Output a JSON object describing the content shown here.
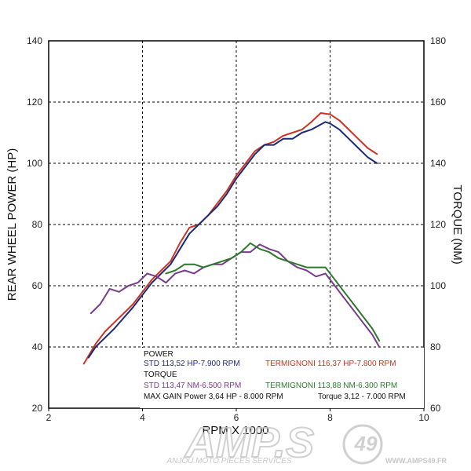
{
  "chart_data": {
    "type": "line",
    "xlabel": "RPM X 1000",
    "ylabel": "REAR WHEEL POWER (HP)",
    "y2label": "TORQUE (NM)",
    "xlim": [
      2,
      10
    ],
    "ylim": [
      20,
      140
    ],
    "y2lim": [
      60,
      180
    ],
    "xticks": [
      "2",
      "4",
      "6",
      "8",
      "10"
    ],
    "yticks": [
      "20",
      "40",
      "60",
      "80",
      "100",
      "120",
      "140"
    ],
    "y2ticks": [
      "60",
      "80",
      "100",
      "120",
      "140",
      "160",
      "180"
    ],
    "grid": true,
    "series": [
      {
        "name": "TERMIGNONI",
        "measure": "power",
        "axis": "left",
        "color": "#cc3322",
        "x": [
          2.75,
          3.0,
          3.2,
          3.4,
          3.6,
          3.8,
          4.0,
          4.2,
          4.4,
          4.6,
          4.8,
          5.0,
          5.2,
          5.4,
          5.6,
          5.8,
          6.0,
          6.2,
          6.4,
          6.6,
          6.8,
          7.0,
          7.2,
          7.4,
          7.6,
          7.8,
          8.0,
          8.2,
          8.4,
          8.6,
          8.8,
          9.0
        ],
        "y": [
          34.5,
          41,
          45,
          48,
          51,
          54,
          58,
          62,
          65,
          68,
          74,
          79,
          80,
          83,
          87,
          91,
          96,
          100,
          104,
          106,
          107,
          109,
          110,
          111,
          113.5,
          116.4,
          116,
          114,
          111,
          108,
          105,
          103
        ]
      },
      {
        "name": "STD",
        "measure": "power",
        "axis": "left",
        "color": "#1a2a78",
        "x": [
          2.85,
          3.0,
          3.2,
          3.4,
          3.6,
          3.8,
          4.0,
          4.2,
          4.4,
          4.6,
          4.8,
          5.0,
          5.2,
          5.4,
          5.6,
          5.8,
          6.0,
          6.2,
          6.4,
          6.6,
          6.8,
          7.0,
          7.2,
          7.4,
          7.6,
          7.9,
          8.0,
          8.2,
          8.4,
          8.6,
          8.8,
          9.0
        ],
        "y": [
          36.5,
          40,
          43,
          46,
          49.5,
          53,
          57,
          61,
          64,
          67,
          72,
          77,
          80,
          83,
          86,
          90,
          95,
          99,
          103,
          106,
          106,
          108,
          108,
          110,
          111,
          113.5,
          113,
          111,
          108,
          105,
          102,
          100
        ]
      },
      {
        "name": "STD",
        "measure": "torque",
        "axis": "right",
        "color": "#7a3a8c",
        "x": [
          2.9,
          3.1,
          3.3,
          3.5,
          3.7,
          3.9,
          4.1,
          4.3,
          4.5,
          4.7,
          4.9,
          5.1,
          5.3,
          5.5,
          5.7,
          5.9,
          6.1,
          6.3,
          6.5,
          6.7,
          6.9,
          7.1,
          7.3,
          7.5,
          7.7,
          7.9,
          8.1,
          8.3,
          8.5,
          8.7,
          8.9,
          9.05
        ],
        "y": [
          91,
          94,
          99,
          98,
          100,
          101,
          104,
          103,
          101,
          104,
          105,
          104,
          106,
          107,
          107,
          109,
          111,
          111,
          113.5,
          112,
          111,
          108,
          106,
          105,
          103,
          104,
          100,
          96,
          92,
          88,
          84,
          80
        ]
      },
      {
        "name": "TERMIGNONI",
        "measure": "torque",
        "axis": "right",
        "color": "#2a7a2a",
        "x": [
          4.5,
          4.7,
          4.9,
          5.1,
          5.3,
          5.5,
          5.7,
          5.9,
          6.1,
          6.3,
          6.5,
          6.7,
          6.9,
          7.1,
          7.3,
          7.5,
          7.7,
          7.9,
          8.1,
          8.3,
          8.5,
          8.7,
          8.9,
          9.05
        ],
        "y": [
          104,
          105,
          107,
          107,
          106,
          107,
          108,
          109,
          111,
          113.9,
          112,
          111,
          109,
          108,
          107,
          106,
          106,
          106,
          102,
          98,
          94,
          90,
          86,
          82
        ]
      }
    ],
    "legend": {
      "power_header": "POWER",
      "std_power": "STD 113,52 HP-7.900 RPM",
      "term_power": "TERMIGNONI 116,37 HP-7.800 RPM",
      "torque_header": "TORQUE",
      "std_torque": "STD 113,47 NM-6.500 RPM",
      "term_torque": "TERMIGNONI 113,88 NM-6.300 RPM",
      "max_gain_power": "MAX GAIN Power 3,64 HP - 8.000 RPM",
      "max_gain_torque": "Torque 3,12 - 7.000 RPM"
    }
  },
  "watermark": {
    "logo_text": "AMP.S",
    "logo_number": "49",
    "tagline": "ANJOU MOTO PIÈCES SERVICES",
    "url": "WWW.AMPS49.FR"
  }
}
